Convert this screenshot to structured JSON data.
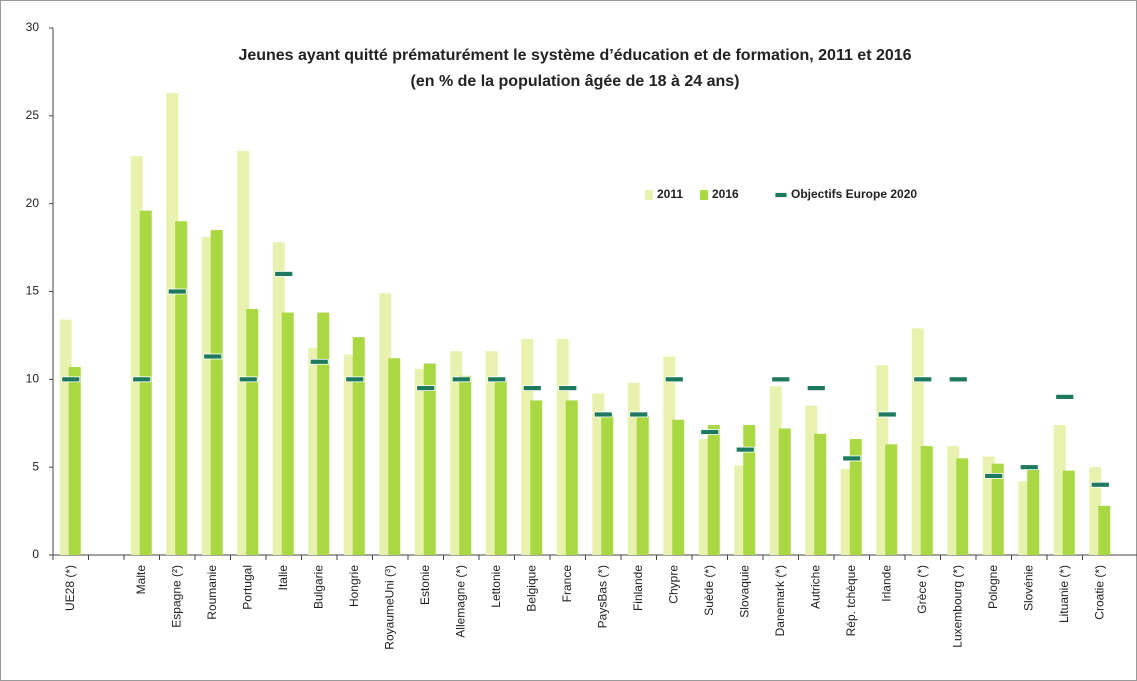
{
  "chart_data": {
    "type": "bar",
    "title": "Jeunes ayant quitté prématurément le système d’éducation et de formation, 2011 et 2016",
    "subtitle": "(en % de la population âgée de 18 à 24 ans)",
    "categories": [
      "UE28 (*)",
      null,
      "Malte",
      "Espagne (²)",
      "Roumanie",
      "Portugal",
      "Italie",
      "Bulgarie",
      "Hongrie",
      "RoyaumeUni (³)",
      "Estonie",
      "Allemagne (*)",
      "Lettonie",
      "Belgique",
      "France",
      "PaysBas (*)",
      "Finlande",
      "Chypre",
      "Suède (*)",
      "Slovaquie",
      "Danemark (*)",
      "Autriche",
      "Rép. tchèque",
      "Irlande",
      "Grèce (*)",
      "Luxembourg (*)",
      "Pologne",
      "Slovénie",
      "Lituanie (*)",
      "Croatie (*)"
    ],
    "series": [
      {
        "name": "2011",
        "color": "#e8f1ad",
        "marker": "bar",
        "values": [
          13.4,
          null,
          22.7,
          26.3,
          18.1,
          23.0,
          17.8,
          11.8,
          11.4,
          14.9,
          10.6,
          11.6,
          11.6,
          12.3,
          12.3,
          9.2,
          9.8,
          11.3,
          6.6,
          5.1,
          9.6,
          8.5,
          4.9,
          10.8,
          12.9,
          6.2,
          5.6,
          4.2,
          7.4,
          5.0
        ]
      },
      {
        "name": "2016",
        "color": "#a9d843",
        "marker": "bar",
        "values": [
          10.7,
          null,
          19.6,
          19.0,
          18.5,
          14.0,
          13.8,
          13.8,
          12.4,
          11.2,
          10.9,
          10.2,
          10.0,
          8.8,
          8.8,
          8.0,
          7.9,
          7.7,
          7.4,
          7.4,
          7.2,
          6.9,
          6.6,
          6.3,
          6.2,
          5.5,
          5.2,
          4.9,
          4.8,
          2.8
        ]
      },
      {
        "name": "Objectifs Europe 2020",
        "color": "#1d7a5f",
        "marker": "dash",
        "values": [
          10,
          null,
          10,
          15,
          11.3,
          10,
          16,
          11,
          10,
          null,
          9.5,
          10,
          10,
          9.5,
          9.5,
          8,
          8,
          10,
          7,
          6,
          10,
          9.5,
          5.5,
          8,
          10,
          10,
          4.5,
          5,
          9,
          4
        ]
      }
    ],
    "ylim": [
      0,
      30
    ],
    "yticks": [
      0,
      5,
      10,
      15,
      20,
      25,
      30
    ]
  }
}
